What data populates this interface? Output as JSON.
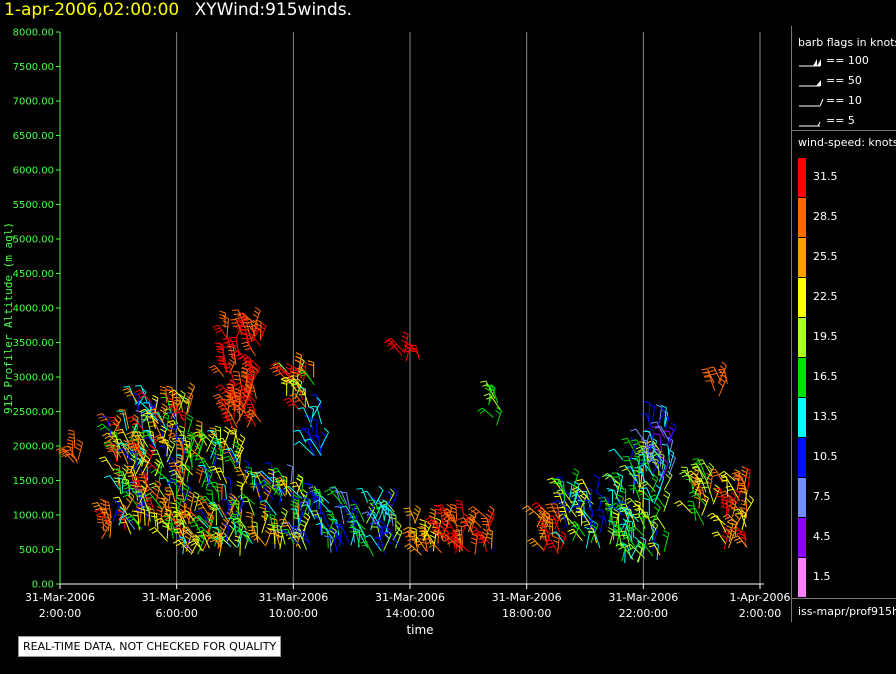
{
  "header": {
    "datetime": "1-apr-2006,02:00:00",
    "product": "XYWind:915winds."
  },
  "chart_data": {
    "type": "wind-barb",
    "title": "1-apr-2006,02:00:00  XYWind:915winds.",
    "xlabel": "time",
    "ylabel": "915 Profiler Altitude (m agl)",
    "ylim": [
      0,
      8000
    ],
    "xlim_hours": [
      0,
      24
    ],
    "y_ticks": [
      "0.00",
      "500.00",
      "1000.00",
      "1500.00",
      "2000.00",
      "2500.00",
      "3000.00",
      "3500.00",
      "4000.00",
      "4500.00",
      "5000.00",
      "5500.00",
      "6000.00",
      "6500.00",
      "7000.00",
      "7500.00",
      "8000.00"
    ],
    "x_ticks": [
      {
        "hour": 0,
        "date": "31-Mar-2006",
        "time": "2:00:00"
      },
      {
        "hour": 4,
        "date": "31-Mar-2006",
        "time": "6:00:00"
      },
      {
        "hour": 8,
        "date": "31-Mar-2006",
        "time": "10:00:00"
      },
      {
        "hour": 12,
        "date": "31-Mar-2006",
        "time": "14:00:00"
      },
      {
        "hour": 16,
        "date": "31-Mar-2006",
        "time": "18:00:00"
      },
      {
        "hour": 20,
        "date": "31-Mar-2006",
        "time": "22:00:00"
      },
      {
        "hour": 24,
        "date": "1-Apr-2006",
        "time": "2:00:00"
      }
    ],
    "grid": "vertical",
    "clusters": [
      {
        "t0": 0.4,
        "t1": 0.7,
        "a0": 1700,
        "a1": 2000,
        "s0": 25,
        "s1": 29
      },
      {
        "t0": 1.3,
        "t1": 1.8,
        "a0": 600,
        "a1": 1000,
        "s0": 24,
        "s1": 30
      },
      {
        "t0": 1.7,
        "t1": 2.9,
        "a0": 700,
        "a1": 2300,
        "s0": 8,
        "s1": 32
      },
      {
        "t0": 2.6,
        "t1": 4.4,
        "a0": 600,
        "a1": 2700,
        "s0": 10,
        "s1": 33
      },
      {
        "t0": 4.2,
        "t1": 6.2,
        "a0": 400,
        "a1": 2100,
        "s0": 10,
        "s1": 28
      },
      {
        "t0": 5.6,
        "t1": 6.9,
        "a0": 2200,
        "a1": 3800,
        "s0": 27,
        "s1": 33
      },
      {
        "t0": 6.2,
        "t1": 8.4,
        "a0": 500,
        "a1": 1500,
        "s0": 8,
        "s1": 26
      },
      {
        "t0": 7.7,
        "t1": 8.8,
        "a0": 2500,
        "a1": 3100,
        "s0": 17,
        "s1": 33
      },
      {
        "t0": 8.4,
        "t1": 9.0,
        "a0": 1800,
        "a1": 2600,
        "s0": 9,
        "s1": 14
      },
      {
        "t0": 8.4,
        "t1": 11.6,
        "a0": 400,
        "a1": 1200,
        "s0": 8,
        "s1": 20
      },
      {
        "t0": 11.6,
        "t1": 12.4,
        "a0": 3200,
        "a1": 3400,
        "s0": 30,
        "s1": 33
      },
      {
        "t0": 12.0,
        "t1": 13.0,
        "a0": 400,
        "a1": 900,
        "s0": 22,
        "s1": 29
      },
      {
        "t0": 13.0,
        "t1": 14.8,
        "a0": 400,
        "a1": 1000,
        "s0": 26,
        "s1": 32
      },
      {
        "t0": 14.6,
        "t1": 15.1,
        "a0": 2300,
        "a1": 2700,
        "s0": 17,
        "s1": 19
      },
      {
        "t0": 16.3,
        "t1": 17.2,
        "a0": 400,
        "a1": 1000,
        "s0": 25,
        "s1": 33
      },
      {
        "t0": 17.2,
        "t1": 19.2,
        "a0": 500,
        "a1": 1400,
        "s0": 9,
        "s1": 24
      },
      {
        "t0": 19.2,
        "t1": 20.8,
        "a0": 300,
        "a1": 1900,
        "s0": 11,
        "s1": 22
      },
      {
        "t0": 20.0,
        "t1": 21.0,
        "a0": 1500,
        "a1": 2400,
        "s0": 4,
        "s1": 14
      },
      {
        "t0": 21.6,
        "t1": 22.4,
        "a0": 800,
        "a1": 1600,
        "s0": 15,
        "s1": 28
      },
      {
        "t0": 22.4,
        "t1": 23.0,
        "a0": 2700,
        "a1": 3000,
        "s0": 27,
        "s1": 29
      },
      {
        "t0": 22.6,
        "t1": 23.6,
        "a0": 500,
        "a1": 1500,
        "s0": 22,
        "s1": 33
      }
    ]
  },
  "legend": {
    "flags_title": "barb flags in knots",
    "flags": [
      {
        "label": "== 100",
        "kind": "100"
      },
      {
        "label": "== 50",
        "kind": "50"
      },
      {
        "label": "== 10",
        "kind": "10"
      },
      {
        "label": "== 5",
        "kind": "5"
      }
    ],
    "speed_title": "wind-speed: knots",
    "bins": [
      {
        "label": "31.5",
        "color": "#ff0000"
      },
      {
        "label": "28.5",
        "color": "#ff6a00"
      },
      {
        "label": "25.5",
        "color": "#ff9c00"
      },
      {
        "label": "22.5",
        "color": "#ffff00"
      },
      {
        "label": "19.5",
        "color": "#a8ff2a"
      },
      {
        "label": "16.5",
        "color": "#00e000"
      },
      {
        "label": "13.5",
        "color": "#00ffff"
      },
      {
        "label": "10.5",
        "color": "#0010ff"
      },
      {
        "label": "7.5",
        "color": "#6f8fff"
      },
      {
        "label": "4.5",
        "color": "#9000ff"
      },
      {
        "label": "1.5",
        "color": "#ff80ff"
      }
    ],
    "path": "iss-mapr/prof915h"
  },
  "notice": "REAL-TIME DATA, NOT CHECKED FOR QUALITY"
}
